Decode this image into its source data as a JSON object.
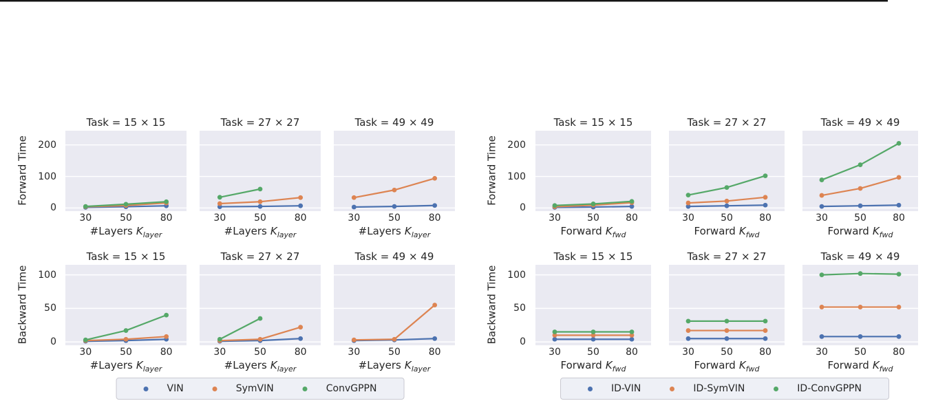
{
  "palette": {
    "blue": "#4c72b0",
    "orange": "#dd8452",
    "green": "#55a868",
    "axes_bg": "#eaeaf2",
    "grid": "#ffffff",
    "text": "#262626"
  },
  "figures": [
    {
      "ylabel_forward": "Forward Time",
      "ylabel_backward": "Backward Time",
      "xlabel_prefix": "#Layers",
      "xlabel_symbol": "K",
      "xlabel_sub": "layer",
      "legend": [
        {
          "label": "VIN",
          "color": "#4c72b0"
        },
        {
          "label": "SymVIN",
          "color": "#dd8452"
        },
        {
          "label": "ConvGPPN",
          "color": "#55a868"
        }
      ]
    },
    {
      "ylabel_forward": "Forward Time",
      "ylabel_backward": "Backward Time",
      "xlabel_prefix": "Forward",
      "xlabel_symbol": "K",
      "xlabel_sub": "fwd",
      "legend": [
        {
          "label": "ID-VIN",
          "color": "#4c72b0"
        },
        {
          "label": "ID-SymVIN",
          "color": "#dd8452"
        },
        {
          "label": "ID-ConvGPPN",
          "color": "#55a868"
        }
      ]
    }
  ],
  "chart_data": [
    {
      "type": "line",
      "figure": "layers",
      "row": "forward",
      "title": "Task = 15 × 15",
      "x": [
        30,
        50,
        80
      ],
      "ylim": [
        -10,
        245
      ],
      "yticks": [
        0,
        100,
        200
      ],
      "grid": true,
      "series": [
        {
          "name": "VIN",
          "color": "#4c72b0",
          "values": [
            2,
            4,
            7
          ]
        },
        {
          "name": "SymVIN",
          "color": "#dd8452",
          "values": [
            4,
            8,
            16
          ]
        },
        {
          "name": "ConvGPPN",
          "color": "#55a868",
          "values": [
            5,
            12,
            20
          ]
        }
      ]
    },
    {
      "type": "line",
      "figure": "layers",
      "row": "forward",
      "title": "Task = 27 × 27",
      "x": [
        30,
        50,
        80
      ],
      "ylim": [
        -10,
        245
      ],
      "yticks": [
        0,
        100,
        200
      ],
      "grid": true,
      "series": [
        {
          "name": "VIN",
          "color": "#4c72b0",
          "values": [
            4,
            5,
            7
          ]
        },
        {
          "name": "SymVIN",
          "color": "#dd8452",
          "values": [
            14,
            20,
            33
          ]
        },
        {
          "name": "ConvGPPN",
          "color": "#55a868",
          "values": [
            34,
            60,
            null
          ]
        }
      ]
    },
    {
      "type": "line",
      "figure": "layers",
      "row": "forward",
      "title": "Task = 49 × 49",
      "x": [
        30,
        50,
        80
      ],
      "ylim": [
        -10,
        245
      ],
      "yticks": [
        0,
        100,
        200
      ],
      "grid": true,
      "series": [
        {
          "name": "VIN",
          "color": "#4c72b0",
          "values": [
            3,
            5,
            8
          ]
        },
        {
          "name": "SymVIN",
          "color": "#dd8452",
          "values": [
            33,
            57,
            94
          ]
        },
        {
          "name": "ConvGPPN",
          "color": "#55a868",
          "values": [
            null,
            null,
            null
          ]
        }
      ]
    },
    {
      "type": "line",
      "figure": "layers",
      "row": "backward",
      "title": "Task = 15 × 15",
      "x": [
        30,
        50,
        80
      ],
      "ylim": [
        -5,
        115
      ],
      "yticks": [
        0,
        50,
        100
      ],
      "grid": true,
      "series": [
        {
          "name": "VIN",
          "color": "#4c72b0",
          "values": [
            1,
            2,
            4
          ]
        },
        {
          "name": "SymVIN",
          "color": "#dd8452",
          "values": [
            2,
            4,
            8
          ]
        },
        {
          "name": "ConvGPPN",
          "color": "#55a868",
          "values": [
            3,
            17,
            40
          ]
        }
      ]
    },
    {
      "type": "line",
      "figure": "layers",
      "row": "backward",
      "title": "Task = 27 × 27",
      "x": [
        30,
        50,
        80
      ],
      "ylim": [
        -5,
        115
      ],
      "yticks": [
        0,
        50,
        100
      ],
      "grid": true,
      "series": [
        {
          "name": "VIN",
          "color": "#4c72b0",
          "values": [
            1,
            2,
            5
          ]
        },
        {
          "name": "SymVIN",
          "color": "#dd8452",
          "values": [
            2,
            4,
            22
          ]
        },
        {
          "name": "ConvGPPN",
          "color": "#55a868",
          "values": [
            4,
            35,
            null
          ]
        }
      ]
    },
    {
      "type": "line",
      "figure": "layers",
      "row": "backward",
      "title": "Task = 49 × 49",
      "x": [
        30,
        50,
        80
      ],
      "ylim": [
        -5,
        115
      ],
      "yticks": [
        0,
        50,
        100
      ],
      "grid": true,
      "series": [
        {
          "name": "VIN",
          "color": "#4c72b0",
          "values": [
            2,
            3,
            5
          ]
        },
        {
          "name": "SymVIN",
          "color": "#dd8452",
          "values": [
            3,
            4,
            55
          ]
        },
        {
          "name": "ConvGPPN",
          "color": "#55a868",
          "values": [
            null,
            null,
            null
          ]
        }
      ]
    },
    {
      "type": "line",
      "figure": "fwd",
      "row": "forward",
      "title": "Task = 15 × 15",
      "x": [
        30,
        50,
        80
      ],
      "ylim": [
        -10,
        245
      ],
      "yticks": [
        0,
        100,
        200
      ],
      "grid": true,
      "series": [
        {
          "name": "ID-VIN",
          "color": "#4c72b0",
          "values": [
            2,
            3,
            5
          ]
        },
        {
          "name": "ID-SymVIN",
          "color": "#dd8452",
          "values": [
            4,
            9,
            17
          ]
        },
        {
          "name": "ID-ConvGPPN",
          "color": "#55a868",
          "values": [
            8,
            13,
            21
          ]
        }
      ]
    },
    {
      "type": "line",
      "figure": "fwd",
      "row": "forward",
      "title": "Task = 27 × 27",
      "x": [
        30,
        50,
        80
      ],
      "ylim": [
        -10,
        245
      ],
      "yticks": [
        0,
        100,
        200
      ],
      "grid": true,
      "series": [
        {
          "name": "ID-VIN",
          "color": "#4c72b0",
          "values": [
            5,
            7,
            9
          ]
        },
        {
          "name": "ID-SymVIN",
          "color": "#dd8452",
          "values": [
            16,
            22,
            34
          ]
        },
        {
          "name": "ID-ConvGPPN",
          "color": "#55a868",
          "values": [
            41,
            65,
            102
          ]
        }
      ]
    },
    {
      "type": "line",
      "figure": "fwd",
      "row": "forward",
      "title": "Task = 49 × 49",
      "x": [
        30,
        50,
        80
      ],
      "ylim": [
        -10,
        245
      ],
      "yticks": [
        0,
        100,
        200
      ],
      "grid": true,
      "series": [
        {
          "name": "ID-VIN",
          "color": "#4c72b0",
          "values": [
            5,
            7,
            9
          ]
        },
        {
          "name": "ID-SymVIN",
          "color": "#dd8452",
          "values": [
            40,
            62,
            97
          ]
        },
        {
          "name": "ID-ConvGPPN",
          "color": "#55a868",
          "values": [
            89,
            137,
            205
          ]
        }
      ]
    },
    {
      "type": "line",
      "figure": "fwd",
      "row": "backward",
      "title": "Task = 15 × 15",
      "x": [
        30,
        50,
        80
      ],
      "ylim": [
        -5,
        115
      ],
      "yticks": [
        0,
        50,
        100
      ],
      "grid": true,
      "series": [
        {
          "name": "ID-VIN",
          "color": "#4c72b0",
          "values": [
            4,
            4,
            4
          ]
        },
        {
          "name": "ID-SymVIN",
          "color": "#dd8452",
          "values": [
            10,
            10,
            10
          ]
        },
        {
          "name": "ID-ConvGPPN",
          "color": "#55a868",
          "values": [
            15,
            15,
            15
          ]
        }
      ]
    },
    {
      "type": "line",
      "figure": "fwd",
      "row": "backward",
      "title": "Task = 27 × 27",
      "x": [
        30,
        50,
        80
      ],
      "ylim": [
        -5,
        115
      ],
      "yticks": [
        0,
        50,
        100
      ],
      "grid": true,
      "series": [
        {
          "name": "ID-VIN",
          "color": "#4c72b0",
          "values": [
            5,
            5,
            5
          ]
        },
        {
          "name": "ID-SymVIN",
          "color": "#dd8452",
          "values": [
            17,
            17,
            17
          ]
        },
        {
          "name": "ID-ConvGPPN",
          "color": "#55a868",
          "values": [
            31,
            31,
            31
          ]
        }
      ]
    },
    {
      "type": "line",
      "figure": "fwd",
      "row": "backward",
      "title": "Task = 49 × 49",
      "x": [
        30,
        50,
        80
      ],
      "ylim": [
        -5,
        115
      ],
      "yticks": [
        0,
        50,
        100
      ],
      "grid": true,
      "series": [
        {
          "name": "ID-VIN",
          "color": "#4c72b0",
          "values": [
            8,
            8,
            8
          ]
        },
        {
          "name": "ID-SymVIN",
          "color": "#dd8452",
          "values": [
            52,
            52,
            52
          ]
        },
        {
          "name": "ID-ConvGPPN",
          "color": "#55a868",
          "values": [
            100,
            102,
            101
          ]
        }
      ]
    }
  ]
}
